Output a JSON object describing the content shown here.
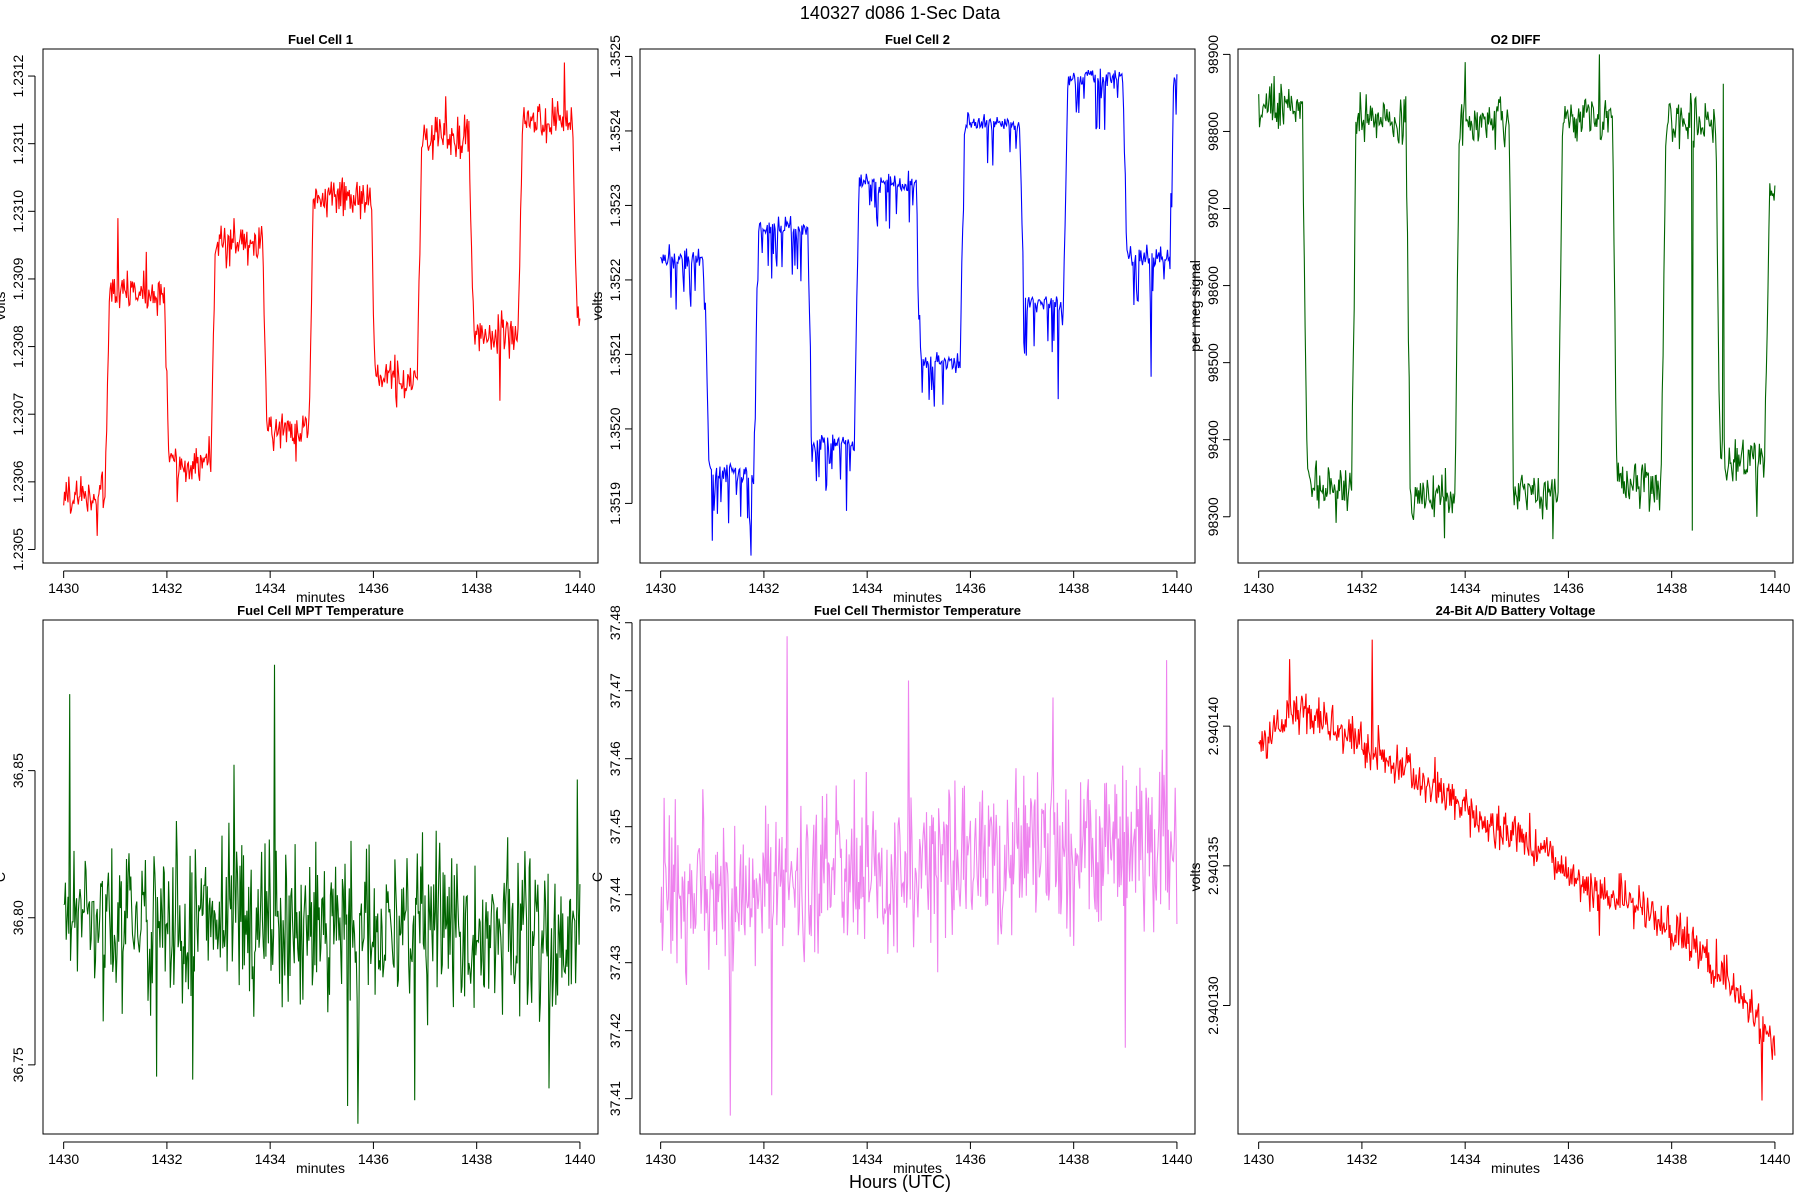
{
  "figure": {
    "title": "140327   d086   1-Sec Data",
    "bottom_label": "Hours (UTC)"
  },
  "colors": {
    "red": "#ff0000",
    "blue": "#0000ff",
    "green": "#006400",
    "violet": "#ee82ee"
  },
  "chart_data": [
    {
      "type": "line",
      "title": "Fuel Cell 1",
      "xlabel": "minutes",
      "ylabel": "volts",
      "xlim": [
        1429.6,
        1440.35
      ],
      "ylim": [
        1.23048,
        1.23124
      ],
      "xticks": [
        1430,
        1432,
        1434,
        1436,
        1438,
        1440
      ],
      "yticks": [
        1.2305,
        1.2306,
        1.2307,
        1.2308,
        1.2309,
        1.231,
        1.2311,
        1.2312
      ],
      "decimals": 4,
      "color": "red",
      "waveform": "steps",
      "steps": [
        [
          1430.0,
          1.23058
        ],
        [
          1430.8,
          1.23088
        ],
        [
          1431.95,
          1.23063
        ],
        [
          1432.85,
          1.23095
        ],
        [
          1433.85,
          1.23068
        ],
        [
          1434.75,
          1.23102
        ],
        [
          1435.95,
          1.23075
        ],
        [
          1436.85,
          1.23111
        ],
        [
          1437.85,
          1.23082
        ],
        [
          1438.8,
          1.23113
        ],
        [
          1439.85,
          1.23085
        ]
      ],
      "noise": 2.8e-05,
      "spikes": [
        [
          1430.65,
          1.23052
        ],
        [
          1431.05,
          1.23099
        ],
        [
          1431.6,
          1.23094
        ],
        [
          1432.2,
          1.23057
        ],
        [
          1433.3,
          1.23099
        ],
        [
          1434.5,
          1.23063
        ],
        [
          1435.4,
          1.23105
        ],
        [
          1436.45,
          1.23071
        ],
        [
          1437.4,
          1.23117
        ],
        [
          1438.45,
          1.23072
        ],
        [
          1439.7,
          1.23122
        ]
      ]
    },
    {
      "type": "line",
      "title": "Fuel Cell 2",
      "xlabel": "minutes",
      "ylabel": "volts",
      "xlim": [
        1429.6,
        1440.35
      ],
      "ylim": [
        1.35182,
        1.35251
      ],
      "xticks": [
        1430,
        1432,
        1434,
        1436,
        1438,
        1440
      ],
      "yticks": [
        1.3519,
        1.352,
        1.3521,
        1.3522,
        1.3523,
        1.3524,
        1.3525
      ],
      "decimals": 4,
      "color": "blue",
      "waveform": "steps-dips",
      "steps": [
        [
          1430.0,
          1.35223
        ],
        [
          1430.85,
          1.35194
        ],
        [
          1431.8,
          1.35227
        ],
        [
          1432.85,
          1.35198
        ],
        [
          1433.75,
          1.35233
        ],
        [
          1434.95,
          1.35209
        ],
        [
          1435.8,
          1.35241
        ],
        [
          1436.95,
          1.35217
        ],
        [
          1437.8,
          1.35247
        ],
        [
          1438.95,
          1.35223
        ],
        [
          1439.85,
          1.35247
        ]
      ],
      "noise": 1.2e-05,
      "spikes": [
        [
          1431.0,
          1.35185
        ],
        [
          1431.75,
          1.35183
        ],
        [
          1433.6,
          1.35189
        ],
        [
          1435.3,
          1.35203
        ],
        [
          1436.3,
          1.35241
        ],
        [
          1437.7,
          1.35204
        ],
        [
          1439.5,
          1.35207
        ]
      ]
    },
    {
      "type": "line",
      "title": "O2 DIFF",
      "xlabel": "minutes",
      "ylabel": "per meg signal",
      "xlim": [
        1429.6,
        1440.35
      ],
      "ylim": [
        98240,
        98907
      ],
      "xticks": [
        1430,
        1432,
        1434,
        1436,
        1438,
        1440
      ],
      "yticks": [
        98300,
        98400,
        98500,
        98600,
        98700,
        98800,
        98900
      ],
      "decimals": 0,
      "color": "green",
      "waveform": "steps",
      "steps": [
        [
          1430.0,
          98830
        ],
        [
          1430.85,
          98340
        ],
        [
          1431.8,
          98815
        ],
        [
          1432.85,
          98325
        ],
        [
          1433.8,
          98810
        ],
        [
          1434.85,
          98330
        ],
        [
          1435.8,
          98820
        ],
        [
          1436.85,
          98345
        ],
        [
          1437.8,
          98815
        ],
        [
          1438.85,
          98375
        ],
        [
          1439.8,
          98720
        ]
      ],
      "noise": 28,
      "spikes": [
        [
          1430.3,
          98872
        ],
        [
          1431.5,
          98292
        ],
        [
          1433.6,
          98272
        ],
        [
          1434.0,
          98890
        ],
        [
          1435.7,
          98271
        ],
        [
          1436.6,
          98900
        ],
        [
          1438.4,
          98282
        ],
        [
          1439.0,
          98862
        ],
        [
          1439.65,
          98300
        ]
      ]
    },
    {
      "type": "line",
      "title": "Fuel Cell MPT Temperature",
      "xlabel": "minutes",
      "ylabel": "C",
      "xlim": [
        1429.6,
        1440.35
      ],
      "ylim": [
        36.7265,
        36.9012
      ],
      "xticks": [
        1430,
        1432,
        1434,
        1436,
        1438,
        1440
      ],
      "yticks": [
        36.75,
        36.8,
        36.85
      ],
      "decimals": 2,
      "color": "green",
      "waveform": "noise",
      "trend": [
        [
          1430.0,
          36.8
        ],
        [
          1440.0,
          36.795
        ]
      ],
      "noise": 0.024,
      "spikes": [
        [
          1430.12,
          36.876
        ],
        [
          1431.8,
          36.746
        ],
        [
          1432.5,
          36.745
        ],
        [
          1433.3,
          36.852
        ],
        [
          1434.08,
          36.886
        ],
        [
          1435.5,
          36.736
        ],
        [
          1435.7,
          36.73
        ],
        [
          1436.8,
          36.738
        ],
        [
          1439.4,
          36.742
        ],
        [
          1439.95,
          36.847
        ]
      ]
    },
    {
      "type": "line",
      "title": "Fuel Cell Thermistor Temperature",
      "xlabel": "minutes",
      "ylabel": "C",
      "xlim": [
        1429.6,
        1440.35
      ],
      "ylim": [
        37.4048,
        37.4804
      ],
      "xticks": [
        1430,
        1432,
        1434,
        1436,
        1438,
        1440
      ],
      "yticks": [
        37.41,
        37.42,
        37.43,
        37.44,
        37.45,
        37.46,
        37.47,
        37.48
      ],
      "decimals": 2,
      "color": "violet",
      "waveform": "noise",
      "trend": [
        [
          1430.0,
          37.439
        ],
        [
          1440.0,
          37.448
        ]
      ],
      "noise": 0.011,
      "spikes": [
        [
          1431.35,
          37.4075
        ],
        [
          1432.45,
          37.478
        ],
        [
          1432.15,
          37.4105
        ],
        [
          1434.8,
          37.4715
        ],
        [
          1437.6,
          37.469
        ],
        [
          1439.0,
          37.4175
        ],
        [
          1439.8,
          37.4745
        ]
      ]
    },
    {
      "type": "line",
      "title": "24-Bit A/D Battery Voltage",
      "xlabel": "minutes",
      "ylabel": "volts",
      "xlim": [
        1429.6,
        1440.35
      ],
      "ylim": [
        2.9401254,
        2.9401438
      ],
      "xticks": [
        1430,
        1432,
        1434,
        1436,
        1438,
        1440
      ],
      "yticks": [
        2.94013,
        2.940135,
        2.94014
      ],
      "decimals": 6,
      "color": "red",
      "waveform": "noise",
      "trend": [
        [
          1430.0,
          2.9401392
        ],
        [
          1430.7,
          2.9401405
        ],
        [
          1431.5,
          2.94014
        ],
        [
          1432.6,
          2.9401386
        ],
        [
          1433.5,
          2.9401377
        ],
        [
          1434.4,
          2.9401365
        ],
        [
          1435.4,
          2.9401357
        ],
        [
          1436.2,
          2.9401343
        ],
        [
          1437.2,
          2.9401337
        ],
        [
          1438.2,
          2.9401325
        ],
        [
          1439.0,
          2.9401312
        ],
        [
          1439.9,
          2.9401288
        ]
      ],
      "noise": 7.5e-07,
      "spikes": [
        [
          1430.6,
          2.9401424
        ],
        [
          1432.2,
          2.9401431
        ],
        [
          1436.6,
          2.9401325
        ],
        [
          1439.75,
          2.9401266
        ]
      ]
    }
  ]
}
